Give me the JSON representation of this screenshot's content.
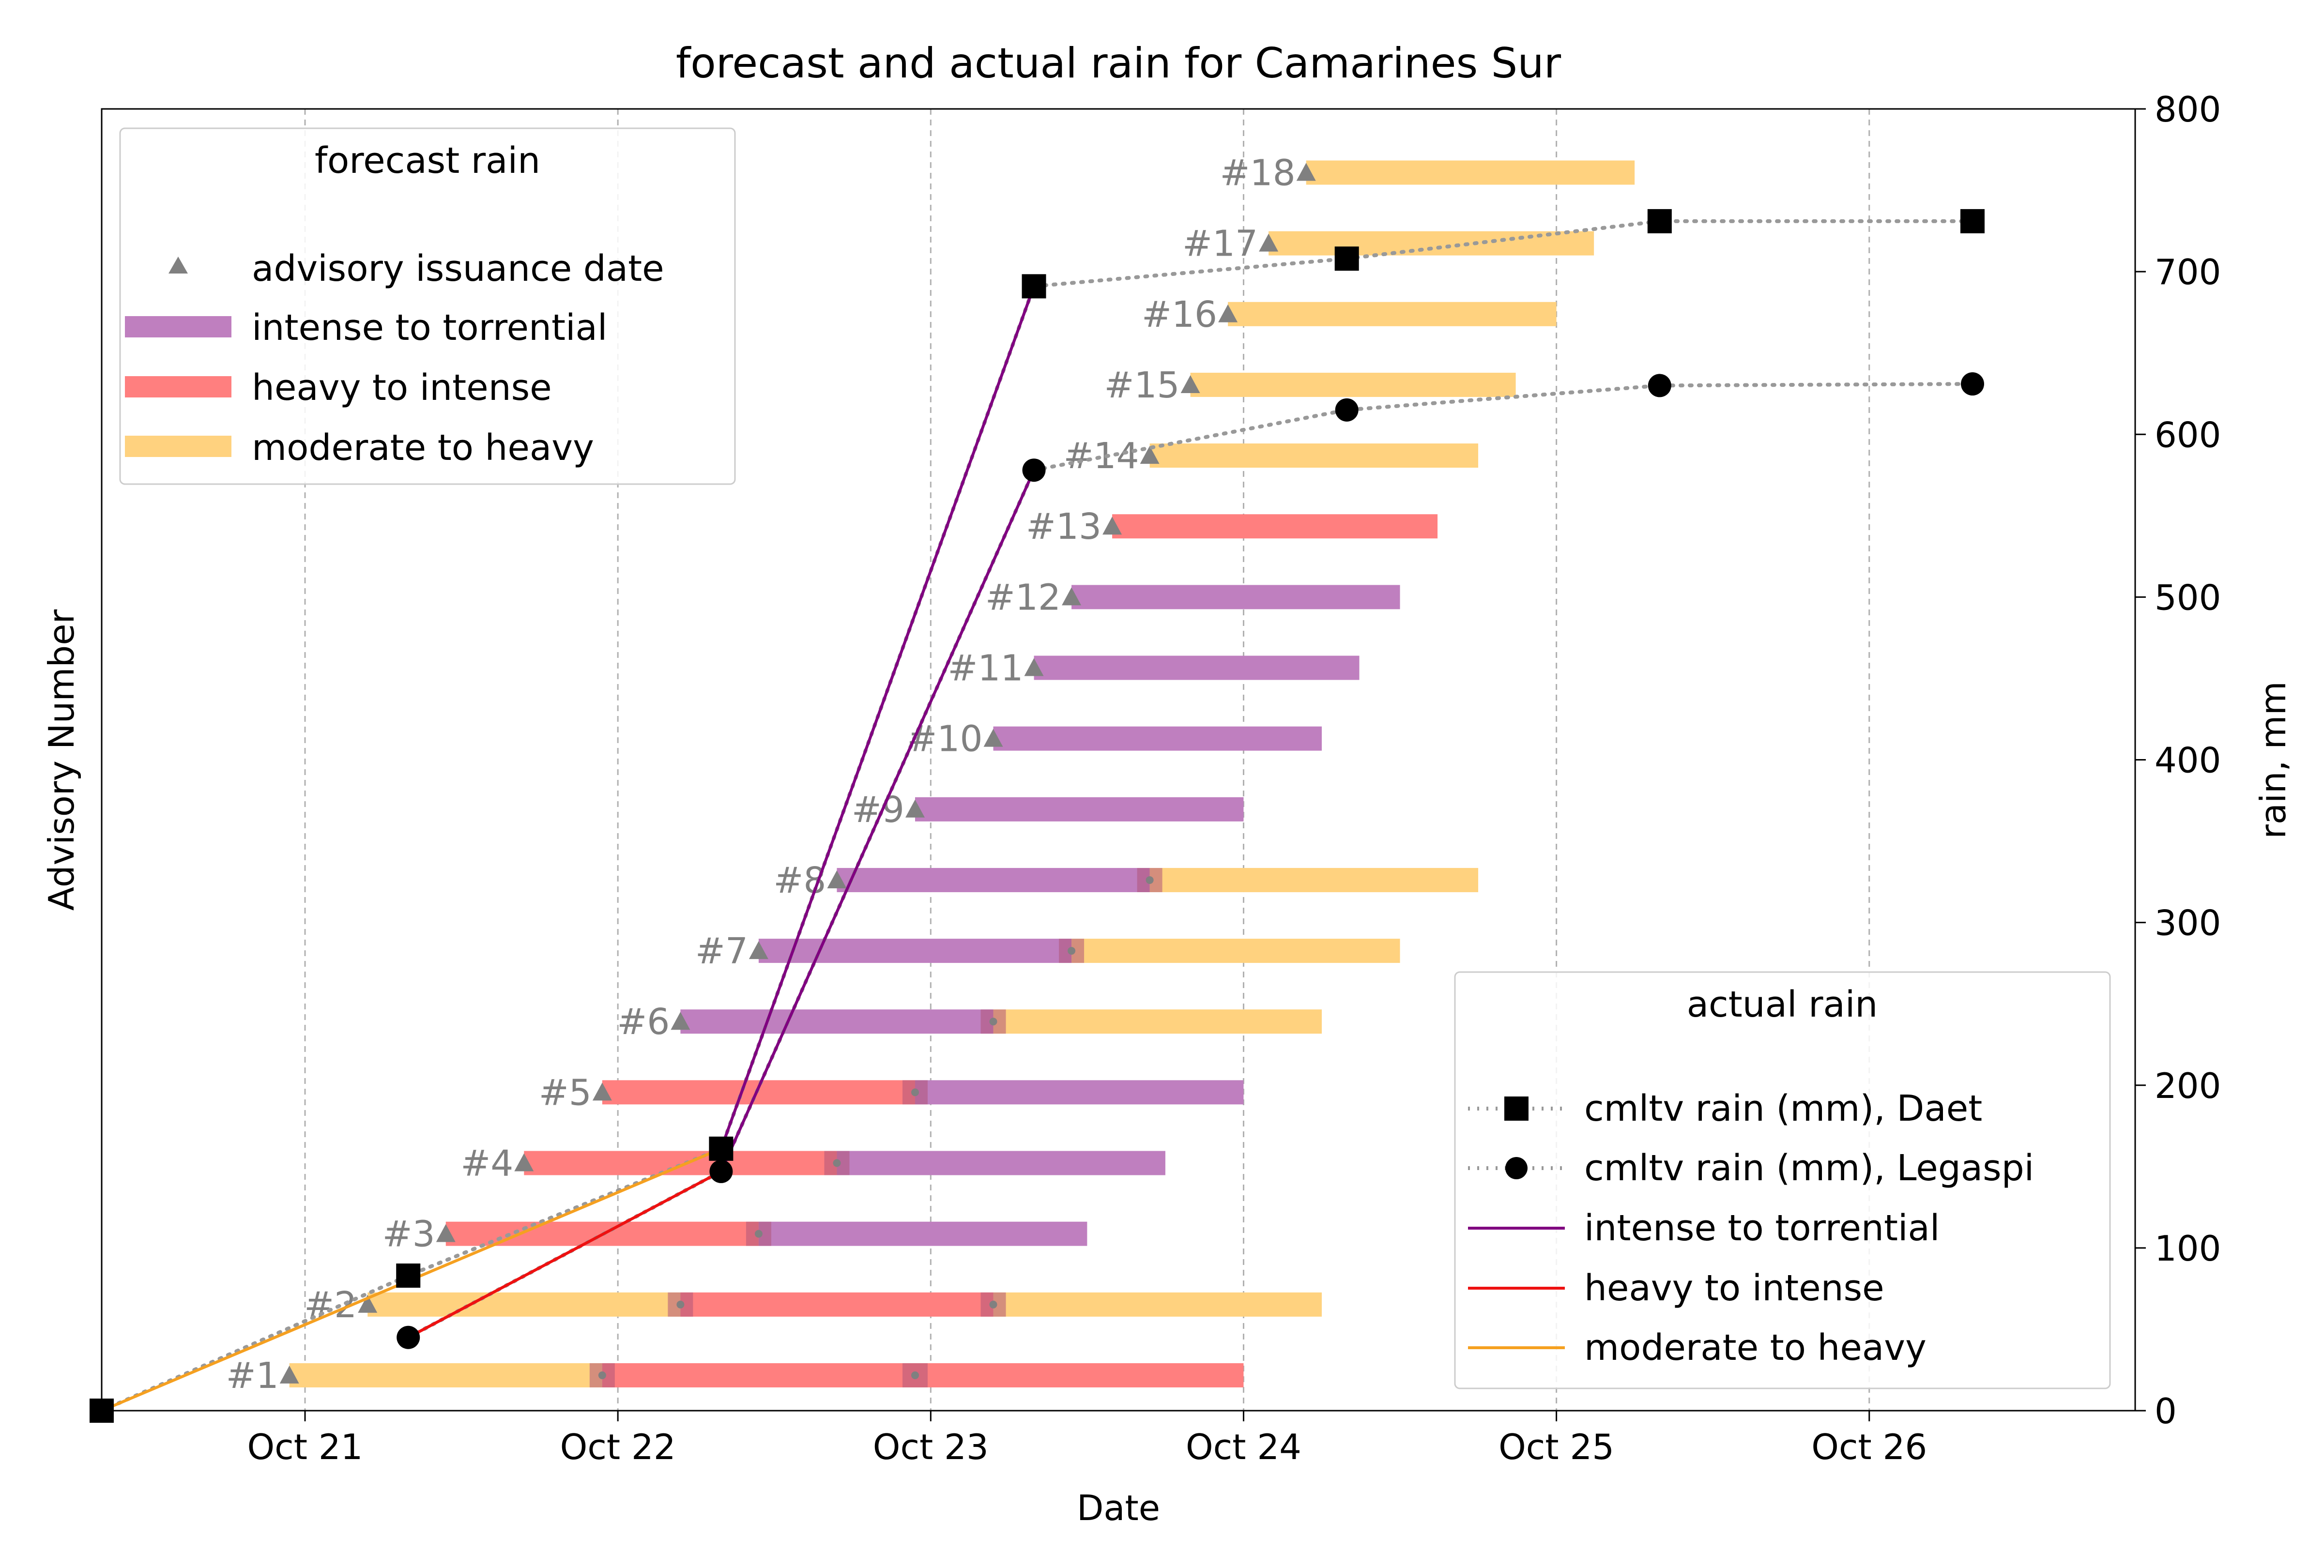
{
  "chart_data": {
    "type": "bar",
    "title": "forecast and actual rain for Camarines Sur",
    "xlabel": "Date",
    "ylabel_left": "Advisory Number",
    "ylabel_right": "rain, mm",
    "x_unit": "days since Oct 21 00:00",
    "xlim": [
      -0.65,
      5.85
    ],
    "x_ticks": [
      {
        "value": 0,
        "label": "Oct 21"
      },
      {
        "value": 1,
        "label": "Oct 22"
      },
      {
        "value": 2,
        "label": "Oct 23"
      },
      {
        "value": 3,
        "label": "Oct 24"
      },
      {
        "value": 4,
        "label": "Oct 25"
      },
      {
        "value": 5,
        "label": "Oct 26"
      }
    ],
    "left_ylim": [
      0.5,
      18.9
    ],
    "right_ylim": [
      0,
      800
    ],
    "right_ticks": [
      0,
      100,
      200,
      300,
      400,
      500,
      600,
      700,
      800
    ],
    "grid": "x dashed",
    "colors": {
      "intense": "#bf7fbf",
      "heavy": "#ff7f7f",
      "moderate": "#ffd27f",
      "line_intense": "#800080",
      "line_heavy": "#ee1111",
      "line_moderate": "#f5a020",
      "marker": "#808080",
      "actual": "#000000"
    },
    "advisories": [
      {
        "label": "#1",
        "issued": -0.05,
        "segments": [
          {
            "start": -0.05,
            "end": 0.95,
            "category": "moderate"
          },
          {
            "start": 0.95,
            "end": 3.0,
            "category": "heavy"
          }
        ],
        "transitions": [
          0.95,
          1.95
        ]
      },
      {
        "label": "#2",
        "issued": 0.2,
        "segments": [
          {
            "start": 0.2,
            "end": 1.2,
            "category": "moderate"
          },
          {
            "start": 1.2,
            "end": 2.2,
            "category": "heavy"
          },
          {
            "start": 2.2,
            "end": 3.25,
            "category": "moderate"
          }
        ],
        "transitions": [
          1.2,
          2.2
        ]
      },
      {
        "label": "#3",
        "issued": 0.45,
        "segments": [
          {
            "start": 0.45,
            "end": 1.45,
            "category": "heavy"
          },
          {
            "start": 1.45,
            "end": 2.5,
            "category": "intense"
          }
        ],
        "transitions": [
          1.45
        ]
      },
      {
        "label": "#4",
        "issued": 0.7,
        "segments": [
          {
            "start": 0.7,
            "end": 1.7,
            "category": "heavy"
          },
          {
            "start": 1.7,
            "end": 2.75,
            "category": "intense"
          }
        ],
        "transitions": [
          1.7
        ]
      },
      {
        "label": "#5",
        "issued": 0.95,
        "segments": [
          {
            "start": 0.95,
            "end": 1.95,
            "category": "heavy"
          },
          {
            "start": 1.95,
            "end": 3.0,
            "category": "intense"
          }
        ],
        "transitions": [
          1.95
        ]
      },
      {
        "label": "#6",
        "issued": 1.2,
        "segments": [
          {
            "start": 1.2,
            "end": 2.2,
            "category": "intense"
          },
          {
            "start": 2.2,
            "end": 3.25,
            "category": "moderate"
          }
        ],
        "transitions": [
          2.2
        ]
      },
      {
        "label": "#7",
        "issued": 1.45,
        "segments": [
          {
            "start": 1.45,
            "end": 2.45,
            "category": "intense"
          },
          {
            "start": 2.45,
            "end": 3.5,
            "category": "moderate"
          }
        ],
        "transitions": [
          2.45
        ]
      },
      {
        "label": "#8",
        "issued": 1.7,
        "segments": [
          {
            "start": 1.7,
            "end": 2.7,
            "category": "intense"
          },
          {
            "start": 2.7,
            "end": 3.75,
            "category": "moderate"
          }
        ],
        "transitions": [
          2.7
        ]
      },
      {
        "label": "#9",
        "issued": 1.95,
        "segments": [
          {
            "start": 1.95,
            "end": 3.0,
            "category": "intense"
          }
        ],
        "transitions": []
      },
      {
        "label": "#10",
        "issued": 2.2,
        "segments": [
          {
            "start": 2.2,
            "end": 3.25,
            "category": "intense"
          }
        ],
        "transitions": []
      },
      {
        "label": "#11",
        "issued": 2.33,
        "segments": [
          {
            "start": 2.33,
            "end": 3.37,
            "category": "intense"
          }
        ],
        "transitions": []
      },
      {
        "label": "#12",
        "issued": 2.45,
        "segments": [
          {
            "start": 2.45,
            "end": 3.5,
            "category": "intense"
          }
        ],
        "transitions": []
      },
      {
        "label": "#13",
        "issued": 2.58,
        "segments": [
          {
            "start": 2.58,
            "end": 3.62,
            "category": "heavy"
          }
        ],
        "transitions": []
      },
      {
        "label": "#14",
        "issued": 2.7,
        "segments": [
          {
            "start": 2.7,
            "end": 3.75,
            "category": "moderate"
          }
        ],
        "transitions": []
      },
      {
        "label": "#15",
        "issued": 2.83,
        "segments": [
          {
            "start": 2.83,
            "end": 3.87,
            "category": "moderate"
          }
        ],
        "transitions": []
      },
      {
        "label": "#16",
        "issued": 2.95,
        "segments": [
          {
            "start": 2.95,
            "end": 4.0,
            "category": "moderate"
          }
        ],
        "transitions": []
      },
      {
        "label": "#17",
        "issued": 3.08,
        "segments": [
          {
            "start": 3.08,
            "end": 4.12,
            "category": "moderate"
          }
        ],
        "transitions": []
      },
      {
        "label": "#18",
        "issued": 3.2,
        "segments": [
          {
            "start": 3.2,
            "end": 4.25,
            "category": "moderate"
          }
        ],
        "transitions": []
      }
    ],
    "actual_series": [
      {
        "name": "cmltv rain (mm), Daet",
        "marker": "square",
        "points": [
          {
            "x": -0.65,
            "y": 0
          },
          {
            "x": 0.33,
            "y": 83
          },
          {
            "x": 1.33,
            "y": 161
          },
          {
            "x": 2.33,
            "y": 691
          },
          {
            "x": 3.33,
            "y": 708
          },
          {
            "x": 4.33,
            "y": 731
          },
          {
            "x": 5.33,
            "y": 731
          }
        ]
      },
      {
        "name": "cmltv rain (mm), Legaspi",
        "marker": "circle",
        "points": [
          {
            "x": 0.33,
            "y": 45
          },
          {
            "x": 1.33,
            "y": 147
          },
          {
            "x": 2.33,
            "y": 578
          },
          {
            "x": 3.33,
            "y": 615
          },
          {
            "x": 4.33,
            "y": 630
          },
          {
            "x": 5.33,
            "y": 631
          }
        ]
      }
    ],
    "forecast_lines": [
      {
        "category": "moderate",
        "points": [
          {
            "x": -0.65,
            "y": 0
          },
          {
            "x": 1.33,
            "y": 161
          }
        ]
      },
      {
        "category": "heavy",
        "points": [
          {
            "x": 0.33,
            "y": 45
          },
          {
            "x": 1.33,
            "y": 147
          }
        ]
      },
      {
        "category": "intense",
        "points": [
          {
            "x": 1.33,
            "y": 161
          },
          {
            "x": 2.33,
            "y": 691
          }
        ]
      },
      {
        "category": "intense",
        "points": [
          {
            "x": 1.33,
            "y": 147
          },
          {
            "x": 2.33,
            "y": 578
          }
        ]
      }
    ],
    "legend_forecast": {
      "title": "forecast rain",
      "location": "upper-left",
      "items": [
        {
          "kind": "marker",
          "label": "advisory issuance date"
        },
        {
          "kind": "bar",
          "category": "intense",
          "label": "intense to torrential"
        },
        {
          "kind": "bar",
          "category": "heavy",
          "label": "heavy to intense"
        },
        {
          "kind": "bar",
          "category": "moderate",
          "label": "moderate to heavy"
        }
      ]
    },
    "legend_actual": {
      "title": "actual rain",
      "location": "lower-right",
      "items": [
        {
          "kind": "square",
          "label": "cmltv rain (mm), Daet"
        },
        {
          "kind": "circle",
          "label": "cmltv rain (mm), Legaspi"
        },
        {
          "kind": "line",
          "category": "intense",
          "label": "intense to torrential"
        },
        {
          "kind": "line",
          "category": "heavy",
          "label": "heavy to intense"
        },
        {
          "kind": "line",
          "category": "moderate",
          "label": "moderate to heavy"
        }
      ]
    }
  }
}
